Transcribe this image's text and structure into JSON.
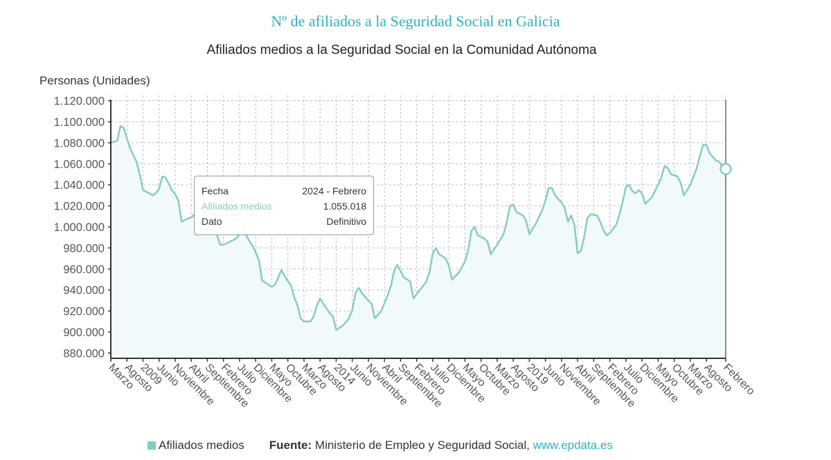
{
  "header": {
    "title": "Nº de afiliados a la Seguridad Social en Galicia",
    "subtitle": "Afiliados medios a la Seguridad Social en la Comunidad Autónoma"
  },
  "tooltip": {
    "rows": [
      {
        "label": "Fecha",
        "value": "2024 - Febrero"
      },
      {
        "label": "Afiliados medios",
        "value": "1.055.018"
      },
      {
        "label": "Dato",
        "value": "Definitivo"
      }
    ]
  },
  "legend": {
    "series_label": "Afiliados medios",
    "source_prefix": "Fuente:",
    "source_text": "Ministerio de Empleo y Seguridad Social,",
    "source_link": "www.epdata.es"
  },
  "colors": {
    "line": "#86cbc4",
    "title": "#2bb3bf",
    "area": "#f2f9fa"
  },
  "chart_data": {
    "type": "area",
    "title": "Afiliados medios a la Seguridad Social en la Comunidad Autónoma",
    "ylabel": "Personas (Unidades)",
    "xlabel": "",
    "ylim": [
      875000,
      1125000
    ],
    "yticks": [
      880000,
      900000,
      920000,
      940000,
      960000,
      980000,
      1000000,
      1020000,
      1040000,
      1060000,
      1080000,
      1100000,
      1120000
    ],
    "ytick_labels": [
      "880.000",
      "900.000",
      "920.000",
      "940.000",
      "960.000",
      "980.000",
      "1.000.000",
      "1.020.000",
      "1.040.000",
      "1.060.000",
      "1.080.000",
      "1.100.000",
      "1.120.000"
    ],
    "x_start": "2008-03",
    "x_end": "2024-02",
    "xtick_labels": [
      "Marzo",
      "Agosto",
      "2009",
      "Junio",
      "Noviembre",
      "Abril",
      "Septiembre",
      "Febrero",
      "Julio",
      "Diciembre",
      "Mayo",
      "Octubre",
      "Marzo",
      "Agosto",
      "2014",
      "Junio",
      "Noviembre",
      "Abril",
      "Septiembre",
      "Febrero",
      "Julio",
      "Diciembre",
      "Mayo",
      "Octubre",
      "Marzo",
      "Agosto",
      "2019",
      "Junio",
      "Noviembre",
      "Abril",
      "Septiembre",
      "Febrero",
      "Julio",
      "Diciembre",
      "Mayo",
      "Octubre",
      "Marzo",
      "Agosto",
      "Febrero"
    ],
    "grid": true,
    "legend_position": "bottom-left",
    "highlight": {
      "date": "2024-02",
      "value": 1055018
    },
    "series": [
      {
        "name": "Afiliados medios",
        "anchors": [
          [
            "2008-03",
            1080000
          ],
          [
            "2008-05",
            1082000
          ],
          [
            "2008-06",
            1096000
          ],
          [
            "2008-07",
            1094000
          ],
          [
            "2008-09",
            1075000
          ],
          [
            "2008-11",
            1062000
          ],
          [
            "2008-12",
            1050000
          ],
          [
            "2009-01",
            1035000
          ],
          [
            "2009-03",
            1032000
          ],
          [
            "2009-04",
            1030000
          ],
          [
            "2009-05",
            1032000
          ],
          [
            "2009-06",
            1036000
          ],
          [
            "2009-07",
            1048000
          ],
          [
            "2009-08",
            1047000
          ],
          [
            "2009-10",
            1035000
          ],
          [
            "2009-11",
            1031000
          ],
          [
            "2009-12",
            1025000
          ],
          [
            "2010-01",
            1005000
          ],
          [
            "2010-03",
            1008000
          ],
          [
            "2010-04",
            1009000
          ],
          [
            "2010-07",
            1018000
          ],
          [
            "2010-08",
            1014000
          ],
          [
            "2010-10",
            1006000
          ],
          [
            "2010-11",
            1001000
          ],
          [
            "2011-01",
            983000
          ],
          [
            "2011-02",
            983000
          ],
          [
            "2011-04",
            986000
          ],
          [
            "2011-06",
            989000
          ],
          [
            "2011-07",
            993000
          ],
          [
            "2011-08",
            1001000
          ],
          [
            "2011-09",
            992000
          ],
          [
            "2011-11",
            982000
          ],
          [
            "2011-12",
            976000
          ],
          [
            "2012-01",
            968000
          ],
          [
            "2012-02",
            949000
          ],
          [
            "2012-03",
            947000
          ],
          [
            "2012-05",
            943000
          ],
          [
            "2012-06",
            945000
          ],
          [
            "2012-07",
            952000
          ],
          [
            "2012-08",
            959000
          ],
          [
            "2012-09",
            953000
          ],
          [
            "2012-11",
            944000
          ],
          [
            "2012-12",
            933000
          ],
          [
            "2013-01",
            925000
          ],
          [
            "2013-02",
            913000
          ],
          [
            "2013-03",
            910000
          ],
          [
            "2013-05",
            910000
          ],
          [
            "2013-06",
            915000
          ],
          [
            "2013-07",
            925000
          ],
          [
            "2013-08",
            932000
          ],
          [
            "2013-09",
            927000
          ],
          [
            "2013-11",
            918000
          ],
          [
            "2013-12",
            915000
          ],
          [
            "2014-01",
            902000
          ],
          [
            "2014-03",
            906000
          ],
          [
            "2014-05",
            913000
          ],
          [
            "2014-06",
            921000
          ],
          [
            "2014-07",
            937000
          ],
          [
            "2014-08",
            942000
          ],
          [
            "2014-09",
            937000
          ],
          [
            "2014-11",
            930000
          ],
          [
            "2014-12",
            927000
          ],
          [
            "2015-01",
            913000
          ],
          [
            "2015-03",
            920000
          ],
          [
            "2015-05",
            935000
          ],
          [
            "2015-06",
            944000
          ],
          [
            "2015-07",
            958000
          ],
          [
            "2015-08",
            964000
          ],
          [
            "2015-09",
            958000
          ],
          [
            "2015-10",
            952000
          ],
          [
            "2015-12",
            948000
          ],
          [
            "2016-01",
            932000
          ],
          [
            "2016-03",
            940000
          ],
          [
            "2016-05",
            948000
          ],
          [
            "2016-06",
            957000
          ],
          [
            "2016-07",
            975000
          ],
          [
            "2016-08",
            980000
          ],
          [
            "2016-09",
            974000
          ],
          [
            "2016-11",
            970000
          ],
          [
            "2016-12",
            963000
          ],
          [
            "2017-01",
            950000
          ],
          [
            "2017-03",
            956000
          ],
          [
            "2017-05",
            967000
          ],
          [
            "2017-06",
            978000
          ],
          [
            "2017-07",
            996000
          ],
          [
            "2017-08",
            1000000
          ],
          [
            "2017-09",
            992000
          ],
          [
            "2017-11",
            989000
          ],
          [
            "2017-12",
            986000
          ],
          [
            "2018-01",
            974000
          ],
          [
            "2018-03",
            983000
          ],
          [
            "2018-05",
            993000
          ],
          [
            "2018-06",
            1005000
          ],
          [
            "2018-07",
            1020000
          ],
          [
            "2018-08",
            1021000
          ],
          [
            "2018-09",
            1014000
          ],
          [
            "2018-11",
            1011000
          ],
          [
            "2018-12",
            1006000
          ],
          [
            "2019-01",
            993000
          ],
          [
            "2019-03",
            1003000
          ],
          [
            "2019-05",
            1016000
          ],
          [
            "2019-06",
            1025000
          ],
          [
            "2019-07",
            1037000
          ],
          [
            "2019-08",
            1037000
          ],
          [
            "2019-09",
            1030000
          ],
          [
            "2019-11",
            1023000
          ],
          [
            "2019-12",
            1018000
          ],
          [
            "2020-01",
            1005000
          ],
          [
            "2020-02",
            1011000
          ],
          [
            "2020-03",
            1002000
          ],
          [
            "2020-04",
            975000
          ],
          [
            "2020-05",
            977000
          ],
          [
            "2020-06",
            990000
          ],
          [
            "2020-07",
            1008000
          ],
          [
            "2020-08",
            1012000
          ],
          [
            "2020-10",
            1011000
          ],
          [
            "2020-11",
            1005000
          ],
          [
            "2020-12",
            997000
          ],
          [
            "2021-01",
            992000
          ],
          [
            "2021-02",
            994000
          ],
          [
            "2021-04",
            1002000
          ],
          [
            "2021-05",
            1012000
          ],
          [
            "2021-06",
            1024000
          ],
          [
            "2021-07",
            1038000
          ],
          [
            "2021-08",
            1040000
          ],
          [
            "2021-09",
            1034000
          ],
          [
            "2021-10",
            1032000
          ],
          [
            "2021-11",
            1035000
          ],
          [
            "2021-12",
            1032000
          ],
          [
            "2022-01",
            1022000
          ],
          [
            "2022-03",
            1028000
          ],
          [
            "2022-05",
            1040000
          ],
          [
            "2022-06",
            1047000
          ],
          [
            "2022-07",
            1058000
          ],
          [
            "2022-08",
            1056000
          ],
          [
            "2022-09",
            1050000
          ],
          [
            "2022-11",
            1048000
          ],
          [
            "2022-12",
            1042000
          ],
          [
            "2023-01",
            1030000
          ],
          [
            "2023-03",
            1040000
          ],
          [
            "2023-05",
            1056000
          ],
          [
            "2023-06",
            1068000
          ],
          [
            "2023-07",
            1078000
          ],
          [
            "2023-08",
            1078000
          ],
          [
            "2023-09",
            1070000
          ],
          [
            "2023-11",
            1063000
          ],
          [
            "2023-12",
            1062000
          ],
          [
            "2024-01",
            1057000
          ],
          [
            "2024-02",
            1055018
          ]
        ]
      }
    ]
  }
}
